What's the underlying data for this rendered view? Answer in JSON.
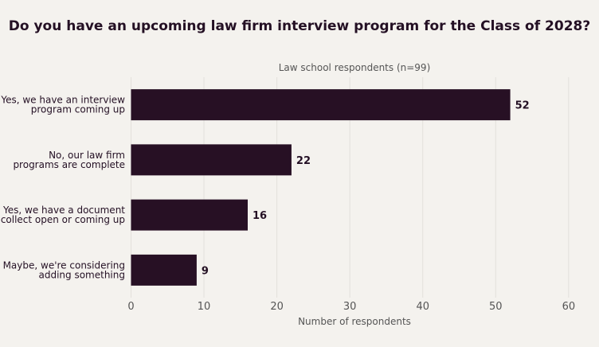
{
  "chart_data": {
    "type": "bar",
    "orientation": "horizontal",
    "title": "Do you have an upcoming law firm interview program for the Class of 2028?",
    "subtitle": "Law school respondents (n=99)",
    "xlabel": "Number of respondents",
    "ylabel": "",
    "categories": [
      [
        "Yes, we have an interview",
        "program coming up"
      ],
      [
        "No, our law firm",
        "programs are complete"
      ],
      [
        "Yes, we have a document",
        "collect open or coming up"
      ],
      [
        "Maybe, we're considering",
        "adding something"
      ]
    ],
    "values": [
      52,
      22,
      16,
      9
    ],
    "xlim": [
      0,
      61
    ],
    "xticks": [
      0,
      10,
      20,
      30,
      40,
      50,
      60
    ],
    "grid": true,
    "bar_color": "#271024"
  }
}
